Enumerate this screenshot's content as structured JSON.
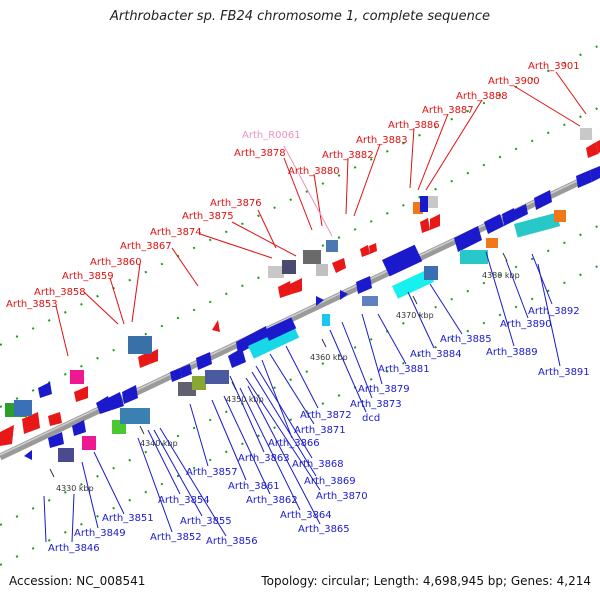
{
  "title": "Arthrobacter sp. FB24 chromosome 1, complete sequence",
  "footer": {
    "accession": "Accession: NC_008541",
    "summary": "Topology: circular; Length: 4,698,945 bp; Genes: 4,214"
  },
  "colors": {
    "top_label": "#e01010",
    "rna_label": "#f090c0",
    "bottom_label": "#1a1acc",
    "backbone": "#8c8c8c"
  },
  "kbp_marks": [
    "4330 kbp",
    "4340 kbp",
    "4350 kbp",
    "4360 kbp",
    "4370 kbp",
    "4380 kbp"
  ],
  "top_labels": [
    "Arth_3901",
    "Arth_3900",
    "Arth_3888",
    "Arth_3887",
    "Arth_3886",
    "Arth_3883",
    "Arth_R0061",
    "Arth_3882",
    "Arth_3878",
    "Arth_3880",
    "Arth_3876",
    "Arth_3875",
    "Arth_3874",
    "Arth_3867",
    "Arth_3860",
    "Arth_3859",
    "Arth_3858",
    "Arth_3853"
  ],
  "bottom_labels": [
    "Arth_3892",
    "Arth_3890",
    "Arth_3889",
    "Arth_3891",
    "Arth_3885",
    "Arth_3884",
    "Arth_3881",
    "Arth_3879",
    "Arth_3873",
    "dcd",
    "Arth_3872",
    "Arth_3871",
    "Arth_3866",
    "Arth_3863",
    "Arth_3868",
    "Arth_3869",
    "Arth_3870",
    "Arth_3857",
    "Arth_3861",
    "Arth_3862",
    "Arth_3864",
    "Arth_3865",
    "Arth_3854",
    "Arth_3855",
    "Arth_3856",
    "Arth_3851",
    "Arth_3852",
    "Arth_3849",
    "Arth_3846"
  ]
}
